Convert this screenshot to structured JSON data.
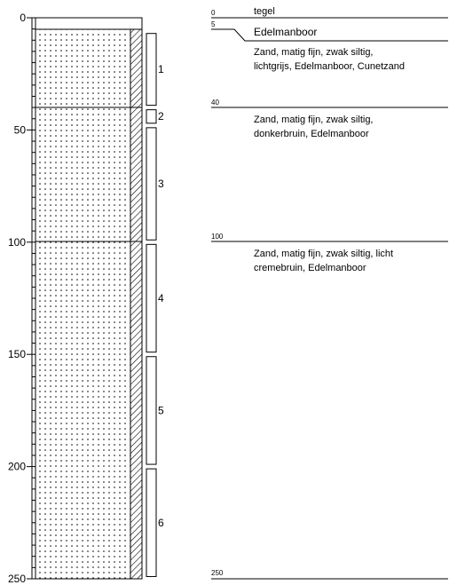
{
  "depth_axis": {
    "ticks": [
      0,
      50,
      100,
      150,
      200,
      250
    ],
    "max_depth": 250
  },
  "column": {
    "pattern": "dotted-sand",
    "casing": "hatched"
  },
  "samples": [
    {
      "label": "1",
      "top": 7,
      "bottom": 39
    },
    {
      "label": "2",
      "top": 41,
      "bottom": 47
    },
    {
      "label": "3",
      "top": 49,
      "bottom": 99
    },
    {
      "label": "4",
      "top": 101,
      "bottom": 149
    },
    {
      "label": "5",
      "top": 151,
      "bottom": 199
    },
    {
      "label": "6",
      "top": 201,
      "bottom": 249
    }
  ],
  "layers": [
    {
      "depth_label": "0",
      "lines": [
        "tegel"
      ]
    },
    {
      "depth_label": "5",
      "lines": [
        "Edelmanboor"
      ]
    },
    {
      "depth_label": "",
      "lines": [
        "Zand, matig fijn, zwak siltig,",
        "lichtgrijs, Edelmanboor, Cunetzand"
      ]
    },
    {
      "depth_label": "40",
      "lines": [
        "Zand, matig fijn, zwak siltig,",
        "donkerbruin, Edelmanboor"
      ]
    },
    {
      "depth_label": "100",
      "lines": [
        "Zand, matig fijn, zwak siltig, licht",
        "cremebruin, Edelmanboor"
      ]
    },
    {
      "depth_label": "250",
      "lines": []
    }
  ]
}
